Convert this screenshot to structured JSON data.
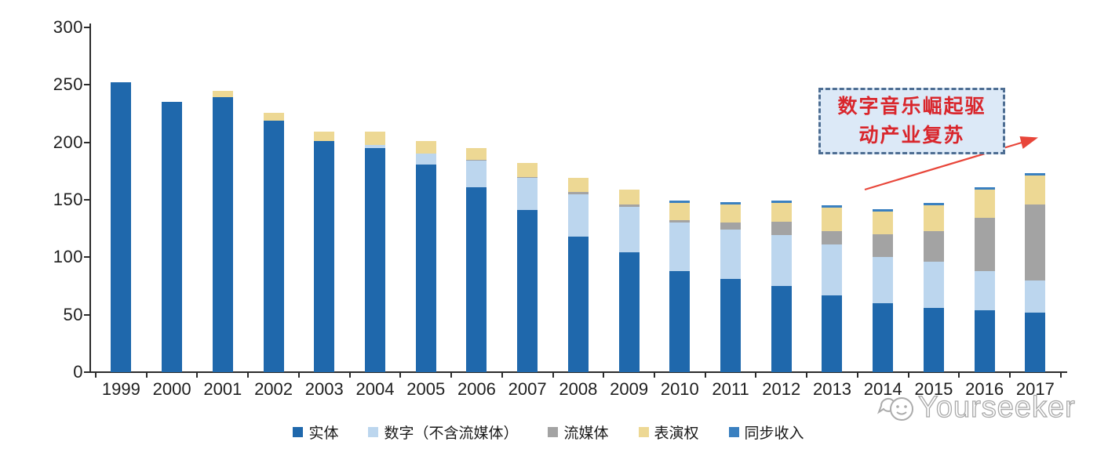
{
  "chart_data": {
    "type": "bar",
    "stacked": true,
    "categories": [
      "1999",
      "2000",
      "2001",
      "2002",
      "2003",
      "2004",
      "2005",
      "2006",
      "2007",
      "2008",
      "2009",
      "2010",
      "2011",
      "2012",
      "2013",
      "2014",
      "2015",
      "2016",
      "2017"
    ],
    "series": [
      {
        "key": "physical",
        "name": "实体",
        "color": "#1F68AC",
        "values": [
          252,
          235,
          239,
          219,
          201,
          195,
          181,
          161,
          141,
          118,
          104,
          88,
          81,
          75,
          67,
          60,
          56,
          54,
          52
        ]
      },
      {
        "key": "digital-ex-streaming",
        "name": "数字（不含流媒体）",
        "color": "#BCD6EE",
        "values": [
          0,
          0,
          0,
          0,
          0,
          3,
          9,
          23,
          28,
          37,
          40,
          42,
          43,
          44,
          44,
          40,
          40,
          34,
          28
        ]
      },
      {
        "key": "streaming",
        "name": "流媒体",
        "color": "#A3A3A3",
        "values": [
          0,
          0,
          0,
          0,
          0,
          0,
          0,
          1,
          1,
          2,
          2,
          2,
          6,
          12,
          12,
          20,
          27,
          46,
          66
        ]
      },
      {
        "key": "performance-rights",
        "name": "表演权",
        "color": "#EDD894",
        "values": [
          0,
          0,
          6,
          7,
          8,
          11,
          11,
          10,
          12,
          12,
          13,
          15,
          16,
          16,
          20,
          20,
          22,
          25,
          25
        ]
      },
      {
        "key": "sync-revenue",
        "name": "同步收入",
        "color": "#3A80C0",
        "values": [
          0,
          0,
          0,
          0,
          0,
          0,
          0,
          0,
          0,
          0,
          0,
          2,
          2,
          2,
          2,
          2,
          2,
          2,
          2
        ]
      }
    ],
    "ylim": [
      0,
      300
    ],
    "yticks": [
      0,
      50,
      100,
      150,
      200,
      250,
      300
    ],
    "legend_position": "bottom",
    "grid": false,
    "axis_color": "#2b2b2b"
  },
  "annotation": {
    "line1": "数字音乐崛起驱",
    "line2": "动产业复苏",
    "fill": "#dce9f7",
    "border_color": "#4e6e93",
    "text_color": "#d9262c",
    "arrow_color": "#e8463a"
  },
  "watermark": {
    "text": "Yourseeker",
    "icon": "yourseeker-logo-icon"
  }
}
